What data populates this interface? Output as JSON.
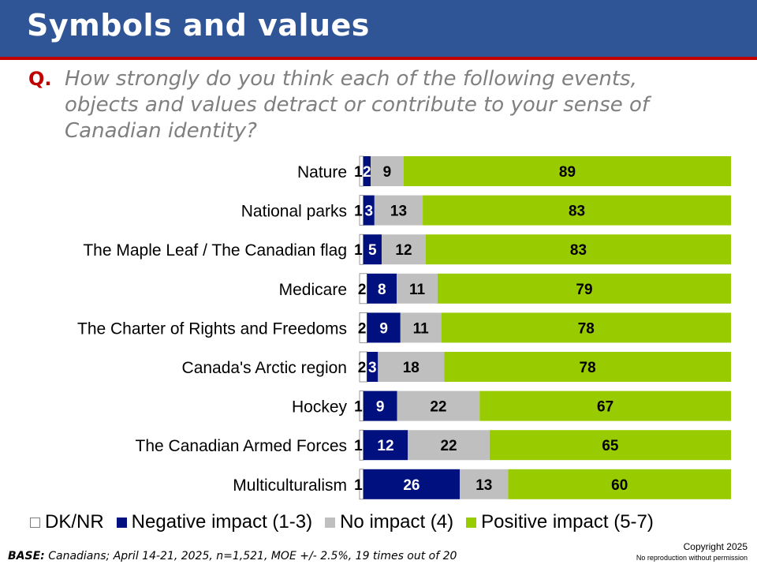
{
  "title": "Symbols and values",
  "question": {
    "prefix": "Q.",
    "text": "How strongly do you think each of the following events, objects and values detract or contribute to your sense of Canadian identity?"
  },
  "chart_data": {
    "type": "bar",
    "orientation": "horizontal",
    "stacked": true,
    "categories": [
      "Nature",
      "National parks",
      "The Maple Leaf / The Canadian flag",
      "Medicare",
      "The Charter of Rights and Freedoms",
      "Canada's Arctic region",
      "Hockey",
      "The Canadian Armed Forces",
      "Multiculturalism"
    ],
    "series": [
      {
        "name": "DK/NR",
        "color": "#ffffff",
        "values": [
          1,
          1,
          1,
          2,
          2,
          2,
          1,
          1,
          1
        ]
      },
      {
        "name": "Negative impact (1-3)",
        "color": "#00107f",
        "values": [
          2,
          3,
          5,
          8,
          9,
          3,
          9,
          12,
          26
        ]
      },
      {
        "name": "No impact (4)",
        "color": "#bfbfbf",
        "values": [
          9,
          13,
          12,
          11,
          11,
          18,
          22,
          22,
          13
        ]
      },
      {
        "name": "Positive impact (5-7)",
        "color": "#99cc00",
        "values": [
          89,
          83,
          83,
          79,
          78,
          78,
          67,
          65,
          60
        ]
      }
    ],
    "legend_position": "bottom",
    "grid": false
  },
  "legend": [
    {
      "label": "DK/NR",
      "color": "#ffffff"
    },
    {
      "label": "Negative impact (1-3)",
      "color": "#00107f"
    },
    {
      "label": "No impact (4)",
      "color": "#bfbfbf"
    },
    {
      "label": "Positive impact (5-7)",
      "color": "#99cc00"
    }
  ],
  "footer": {
    "base_label": "BASE:",
    "base_text": "Canadians; April 14-21, 2025, n=1,521, MOE +/- 2.5%, 19 times out of 20",
    "copyright": "Copyright 2025",
    "reproduction": "No reproduction without permission"
  }
}
